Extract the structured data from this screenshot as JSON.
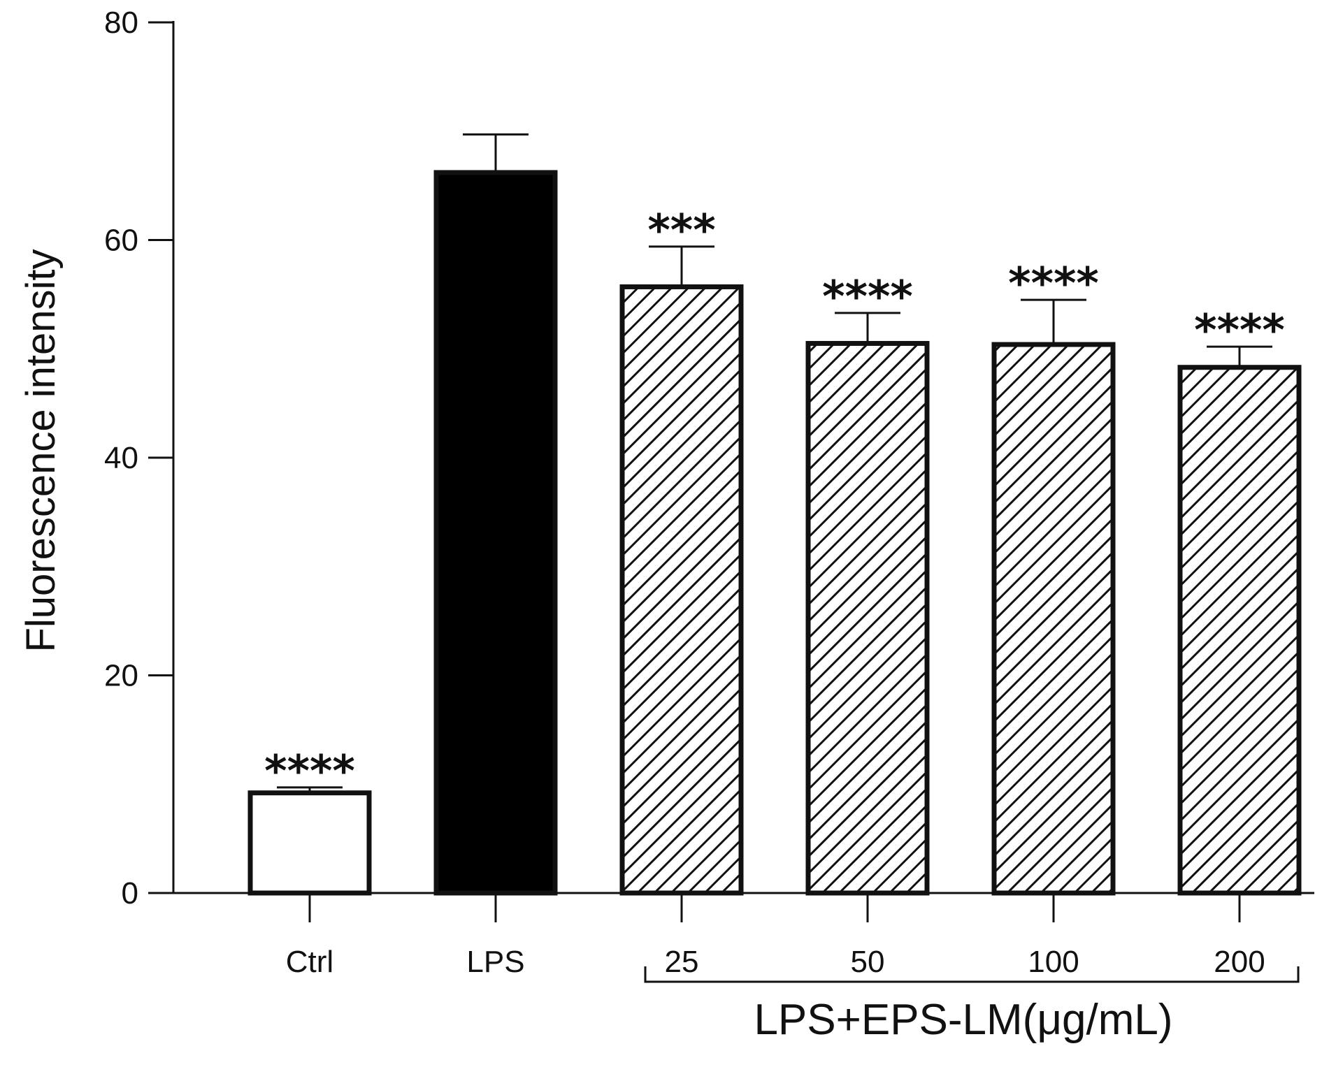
{
  "chart_data": {
    "type": "bar",
    "title": "",
    "xlabel": "",
    "ylabel": "Fluorescence intensity",
    "ylim": [
      0,
      80
    ],
    "yticks": [
      0,
      20,
      40,
      60,
      80
    ],
    "grid": false,
    "categories": [
      "Ctrl",
      "LPS",
      "25",
      "50",
      "100",
      "200"
    ],
    "values": [
      9.2,
      66.2,
      55.7,
      50.5,
      50.4,
      48.3
    ],
    "errors": [
      0.5,
      3.5,
      3.7,
      2.8,
      4.1,
      1.9
    ],
    "significance": [
      "****",
      "",
      "***",
      "****",
      "****",
      "****"
    ],
    "fills": [
      "white",
      "black",
      "hatched",
      "hatched",
      "hatched",
      "hatched"
    ],
    "group_bracket": {
      "label": "LPS+EPS-LM(μg/mL)",
      "from_category": 2,
      "to_category": 5
    }
  }
}
